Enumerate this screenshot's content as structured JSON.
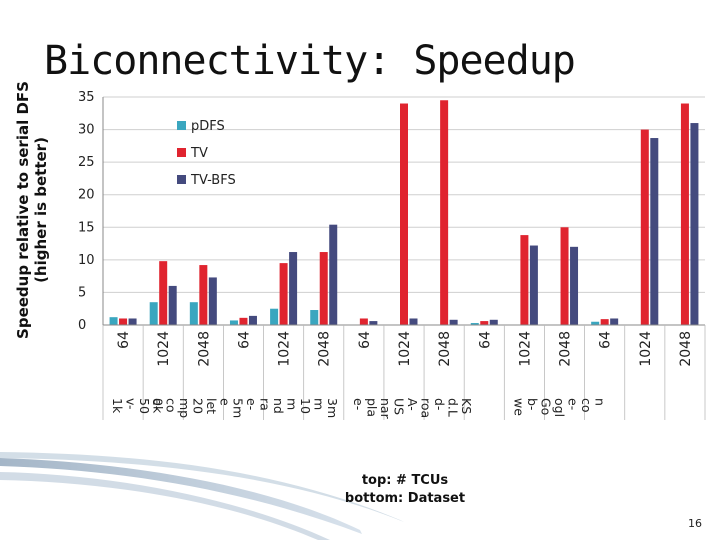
{
  "slide": {
    "title": "Biconnectivity: Speedup",
    "caption_line1": "top: # TCUs",
    "caption_line2": "bottom: Dataset",
    "page_number": "16"
  },
  "chart_data": {
    "type": "bar",
    "ylabel_line1": "Speedup relative to serial DFS",
    "ylabel_line2": "(higher is better)",
    "ylim": [
      0,
      35
    ],
    "yticks": [
      0,
      5,
      10,
      15,
      20,
      25,
      30,
      35
    ],
    "grid": true,
    "legend_position": "top-left",
    "categories": [
      "64",
      "1024",
      "2048",
      "64",
      "1024",
      "2048",
      "64",
      "1024",
      "2048",
      "64",
      "1024",
      "2048",
      "64",
      "1024",
      "2048"
    ],
    "datasets": [
      {
        "label": "1k v- 50 0k",
        "span": [
          0,
          2
        ]
      },
      {
        "label": "e- co mp 20 let e",
        "span": [
          1,
          3
        ]
      },
      {
        "label": "5m e- ra nd m 10 m 3m",
        "span": [
          3,
          6
        ]
      },
      {
        "label": "e- pla nar US A- roa d- d.L KS",
        "span": [
          6,
          10
        ]
      },
      {
        "label": "we b- Go ogl e- co n",
        "span": [
          10,
          14
        ]
      }
    ],
    "series": [
      {
        "name": "pDFS",
        "color": "#3aa6bf",
        "values": [
          1.2,
          3.5,
          3.5,
          0.7,
          2.5,
          2.3,
          0,
          0,
          0,
          0.3,
          0,
          0,
          0.5,
          0,
          0
        ]
      },
      {
        "name": "TV",
        "color": "#e0242f",
        "values": [
          1.0,
          9.8,
          9.2,
          1.1,
          9.5,
          11.2,
          1.0,
          34.0,
          34.5,
          0.6,
          13.8,
          15.0,
          0.9,
          30.0,
          34.0
        ]
      },
      {
        "name": "TV-BFS",
        "color": "#444a7e",
        "values": [
          1.0,
          6.0,
          7.3,
          1.4,
          11.2,
          15.4,
          0.6,
          1.0,
          0.8,
          0.8,
          12.2,
          12.0,
          1.0,
          28.7,
          31.0
        ]
      }
    ]
  }
}
